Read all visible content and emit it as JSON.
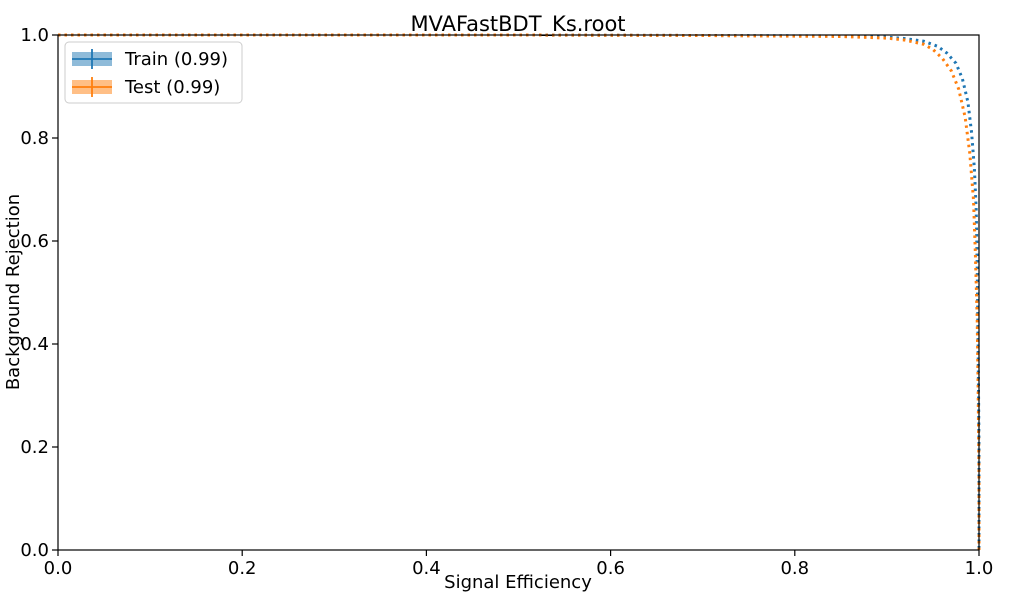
{
  "chart_data": {
    "type": "line",
    "title": "MVAFastBDT_Ks.root",
    "xlabel": "Signal Efficiency",
    "ylabel": "Background Rejection",
    "xlim": [
      0.0,
      1.0
    ],
    "ylim": [
      0.0,
      1.0
    ],
    "xticks": [
      "0.0",
      "0.2",
      "0.4",
      "0.6",
      "0.8",
      "1.0"
    ],
    "yticks": [
      "0.0",
      "0.2",
      "0.4",
      "0.6",
      "0.8",
      "1.0"
    ],
    "grid": false,
    "legend_position": "top-left",
    "series": [
      {
        "name": "Train (0.99)",
        "color": "#1f77b4",
        "linestyle": "dotted",
        "x": [
          0.0,
          0.3,
          0.5,
          0.7,
          0.85,
          0.9,
          0.92,
          0.94,
          0.955,
          0.965,
          0.975,
          0.982,
          0.988,
          0.992,
          0.995,
          0.997,
          0.998,
          0.999,
          1.0,
          1.0
        ],
        "y": [
          1.0,
          1.0,
          1.0,
          0.999,
          0.998,
          0.996,
          0.993,
          0.988,
          0.978,
          0.965,
          0.945,
          0.915,
          0.87,
          0.81,
          0.74,
          0.66,
          0.55,
          0.4,
          0.2,
          0.0
        ]
      },
      {
        "name": "Test (0.99)",
        "color": "#ff7f0e",
        "linestyle": "dotted",
        "x": [
          0.0,
          0.3,
          0.5,
          0.7,
          0.85,
          0.9,
          0.92,
          0.94,
          0.95,
          0.96,
          0.97,
          0.978,
          0.985,
          0.99,
          0.994,
          0.996,
          0.998,
          0.999,
          1.0,
          1.0
        ],
        "y": [
          1.0,
          1.0,
          1.0,
          0.999,
          0.997,
          0.994,
          0.99,
          0.982,
          0.972,
          0.955,
          0.93,
          0.895,
          0.84,
          0.77,
          0.68,
          0.58,
          0.45,
          0.32,
          0.15,
          0.0
        ]
      }
    ]
  }
}
